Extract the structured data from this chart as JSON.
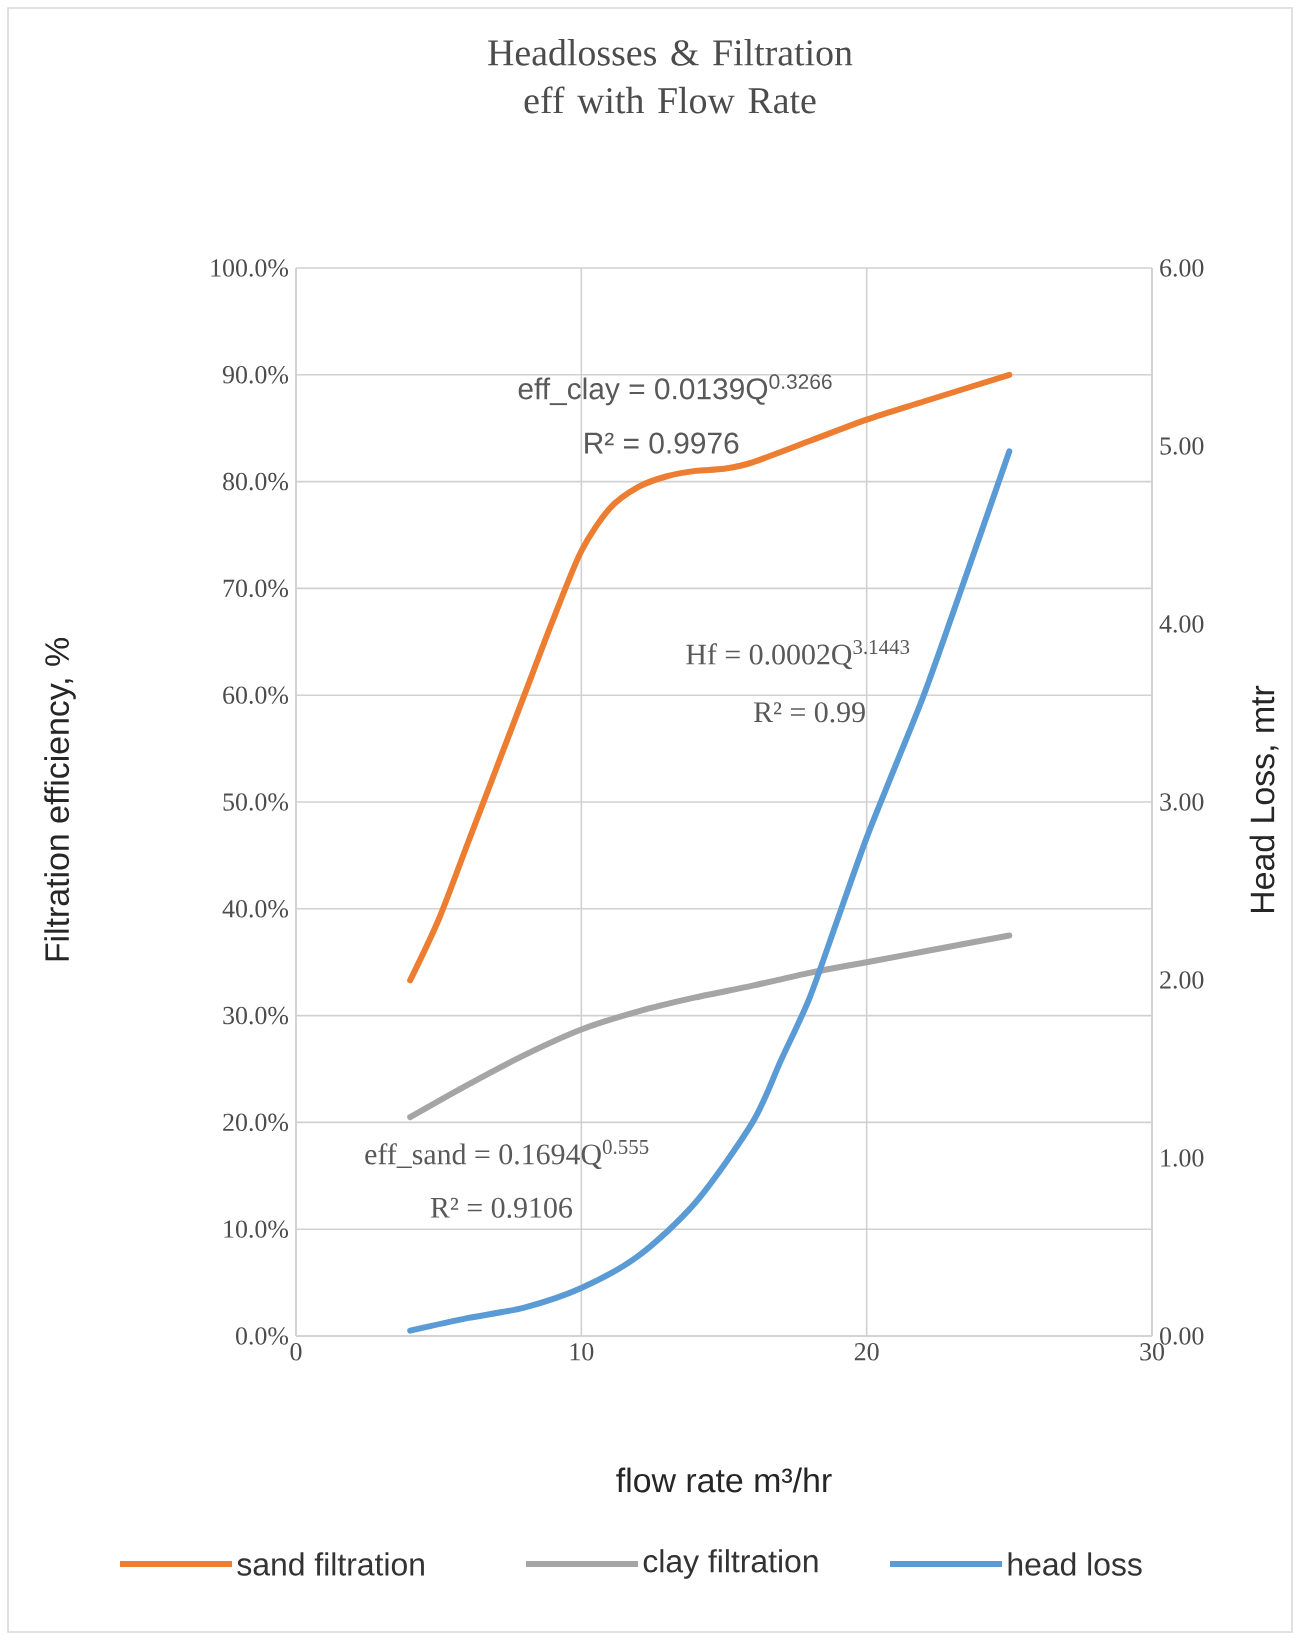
{
  "chart_data": {
    "type": "line",
    "title": "Headlosses & Filtration eff with Flow Rate",
    "xlabel": "flow rate m³/hr",
    "ylabel": "Filtration efficiency, %",
    "y2label": "Head Loss, mtr",
    "xlim": [
      0,
      30
    ],
    "xticks": [
      0,
      10,
      20,
      30
    ],
    "ylim": [
      0,
      100
    ],
    "yticks": [
      {
        "value": 0,
        "label": "0.0%"
      },
      {
        "value": 10,
        "label": "10.0%"
      },
      {
        "value": 20,
        "label": "20.0%"
      },
      {
        "value": 30,
        "label": "30.0%"
      },
      {
        "value": 40,
        "label": "40.0%"
      },
      {
        "value": 50,
        "label": "50.0%"
      },
      {
        "value": 60,
        "label": "60.0%"
      },
      {
        "value": 70,
        "label": "70.0%"
      },
      {
        "value": 80,
        "label": "80.0%"
      },
      {
        "value": 90,
        "label": "90.0%"
      },
      {
        "value": 100,
        "label": "100.0%"
      }
    ],
    "y2lim": [
      0,
      6
    ],
    "y2ticks": [
      {
        "value": 0,
        "label": "0.00"
      },
      {
        "value": 1,
        "label": "1.00"
      },
      {
        "value": 2,
        "label": "2.00"
      },
      {
        "value": 3,
        "label": "3.00"
      },
      {
        "value": 4,
        "label": "4.00"
      },
      {
        "value": 5,
        "label": "5.00"
      },
      {
        "value": 6,
        "label": "6.00"
      }
    ],
    "grid": true,
    "legend": "bottom",
    "marker": "none",
    "line_style": "solid",
    "series": [
      {
        "name": "sand filtration",
        "color": "#ed7d31",
        "x": [
          4,
          5,
          6,
          7,
          8,
          9,
          10,
          11,
          12,
          13,
          14,
          15,
          16,
          18,
          20,
          22,
          25
        ],
        "values": [
          33.3,
          39,
          46,
          53,
          60,
          67,
          73.5,
          77.5,
          79.5,
          80.5,
          81,
          81.2,
          81.8,
          83.8,
          85.8,
          87.5,
          90
        ]
      },
      {
        "name": "clay filtration",
        "color": "#a5a5a5",
        "x": [
          4,
          6,
          8,
          10,
          12,
          14,
          16,
          18,
          20,
          22,
          25
        ],
        "values": [
          20.5,
          23.5,
          26.3,
          28.7,
          30.4,
          31.7,
          32.8,
          34,
          35,
          36,
          37.5
        ]
      },
      {
        "name": "head loss",
        "color": "#5b9bd5",
        "axis": "y2",
        "x": [
          4,
          6,
          8,
          10,
          12,
          14,
          16,
          17,
          18,
          19,
          20,
          21,
          22,
          23,
          25
        ],
        "values": [
          0.03,
          0.1,
          0.16,
          0.27,
          0.45,
          0.75,
          1.2,
          1.55,
          1.9,
          2.35,
          2.8,
          3.2,
          3.6,
          4.05,
          4.97
        ]
      }
    ],
    "annotations": [
      "eff_clay = 0.0139Q$^{0.3266}$",
      "R² = 0.9976",
      "Hf = 0.0002Q$^{3.1443}$",
      "R² = 0.99",
      "eff_sand = 0.1694Q$^{0.555}$",
      "R² = 0.9106"
    ]
  }
}
